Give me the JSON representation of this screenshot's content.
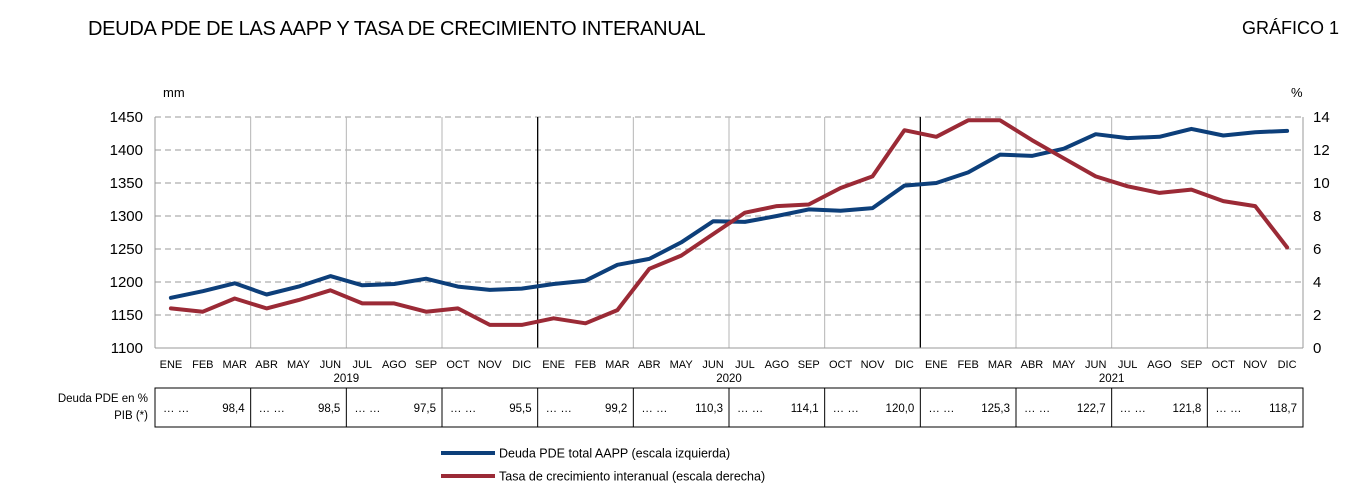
{
  "header": {
    "title": "DEUDA PDE DE LAS AAPP Y TASA DE CRECIMIENTO  INTERANUAL",
    "figure_label": "GRÁFICO 1"
  },
  "chart_data": {
    "type": "line",
    "title": "DEUDA PDE DE LAS AAPP Y TASA DE CRECIMIENTO  INTERANUAL",
    "left_axis": {
      "unit": "mm",
      "ylim": [
        1100,
        1450
      ],
      "ticks": [
        1100,
        1150,
        1200,
        1250,
        1300,
        1350,
        1400,
        1450
      ]
    },
    "right_axis": {
      "unit": "%",
      "ylim": [
        0,
        14
      ],
      "ticks": [
        0,
        2,
        4,
        6,
        8,
        10,
        12,
        14
      ]
    },
    "grid": "horizontal dashed; vertical every quarter; solid vertical at year boundaries",
    "categories": [
      "ENE",
      "FEB",
      "MAR",
      "ABR",
      "MAY",
      "JUN",
      "JUL",
      "AGO",
      "SEP",
      "OCT",
      "NOV",
      "DIC",
      "ENE",
      "FEB",
      "MAR",
      "ABR",
      "MAY",
      "JUN",
      "JUL",
      "AGO",
      "SEP",
      "OCT",
      "NOV",
      "DIC",
      "ENE",
      "FEB",
      "MAR",
      "ABR",
      "MAY",
      "JUN",
      "JUL",
      "AGO",
      "SEP",
      "OCT",
      "NOV",
      "DIC"
    ],
    "years": [
      "2019",
      "2020",
      "2021"
    ],
    "series": [
      {
        "name": "Deuda PDE total AAPP (escala izquierda)",
        "axis": "left",
        "color": "#0d3f7a",
        "values": [
          1176,
          1186,
          1198,
          1181,
          1193,
          1209,
          1195,
          1197,
          1205,
          1193,
          1188,
          1190,
          1197,
          1202,
          1226,
          1235,
          1260,
          1292,
          1291,
          1300,
          1310,
          1308,
          1312,
          1346,
          1350,
          1366,
          1393,
          1391,
          1402,
          1424,
          1418,
          1420,
          1432,
          1422,
          1427,
          1429
        ]
      },
      {
        "name": "Tasa de crecimiento interanual (escala derecha)",
        "axis": "right",
        "color": "#9b2a36",
        "values": [
          2.4,
          2.2,
          3.0,
          2.4,
          2.9,
          3.5,
          2.7,
          2.7,
          2.2,
          2.4,
          1.4,
          1.4,
          1.8,
          1.5,
          2.3,
          4.8,
          5.6,
          6.9,
          8.2,
          8.6,
          8.7,
          9.7,
          10.4,
          13.2,
          12.8,
          13.8,
          13.8,
          12.6,
          11.5,
          10.4,
          9.8,
          9.4,
          9.6,
          8.9,
          8.6,
          6.1
        ]
      }
    ],
    "table": {
      "row_label": [
        "Deuda PDE en %",
        "PIB (*)"
      ],
      "cells": [
        {
          "prefix": "…   …",
          "value": "98,4"
        },
        {
          "prefix": "…   …",
          "value": "98,5"
        },
        {
          "prefix": "…   …",
          "value": "97,5"
        },
        {
          "prefix": "…   …",
          "value": "95,5"
        },
        {
          "prefix": "…   …",
          "value": "99,2"
        },
        {
          "prefix": "…   …",
          "value": "110,3"
        },
        {
          "prefix": "…   …",
          "value": "114,1"
        },
        {
          "prefix": "…   …",
          "value": "120,0"
        },
        {
          "prefix": "…   …",
          "value": "125,3"
        },
        {
          "prefix": "…   …",
          "value": "122,7"
        },
        {
          "prefix": "…   …",
          "value": "121,8"
        },
        {
          "prefix": "…   …",
          "value": "118,7"
        }
      ]
    }
  }
}
